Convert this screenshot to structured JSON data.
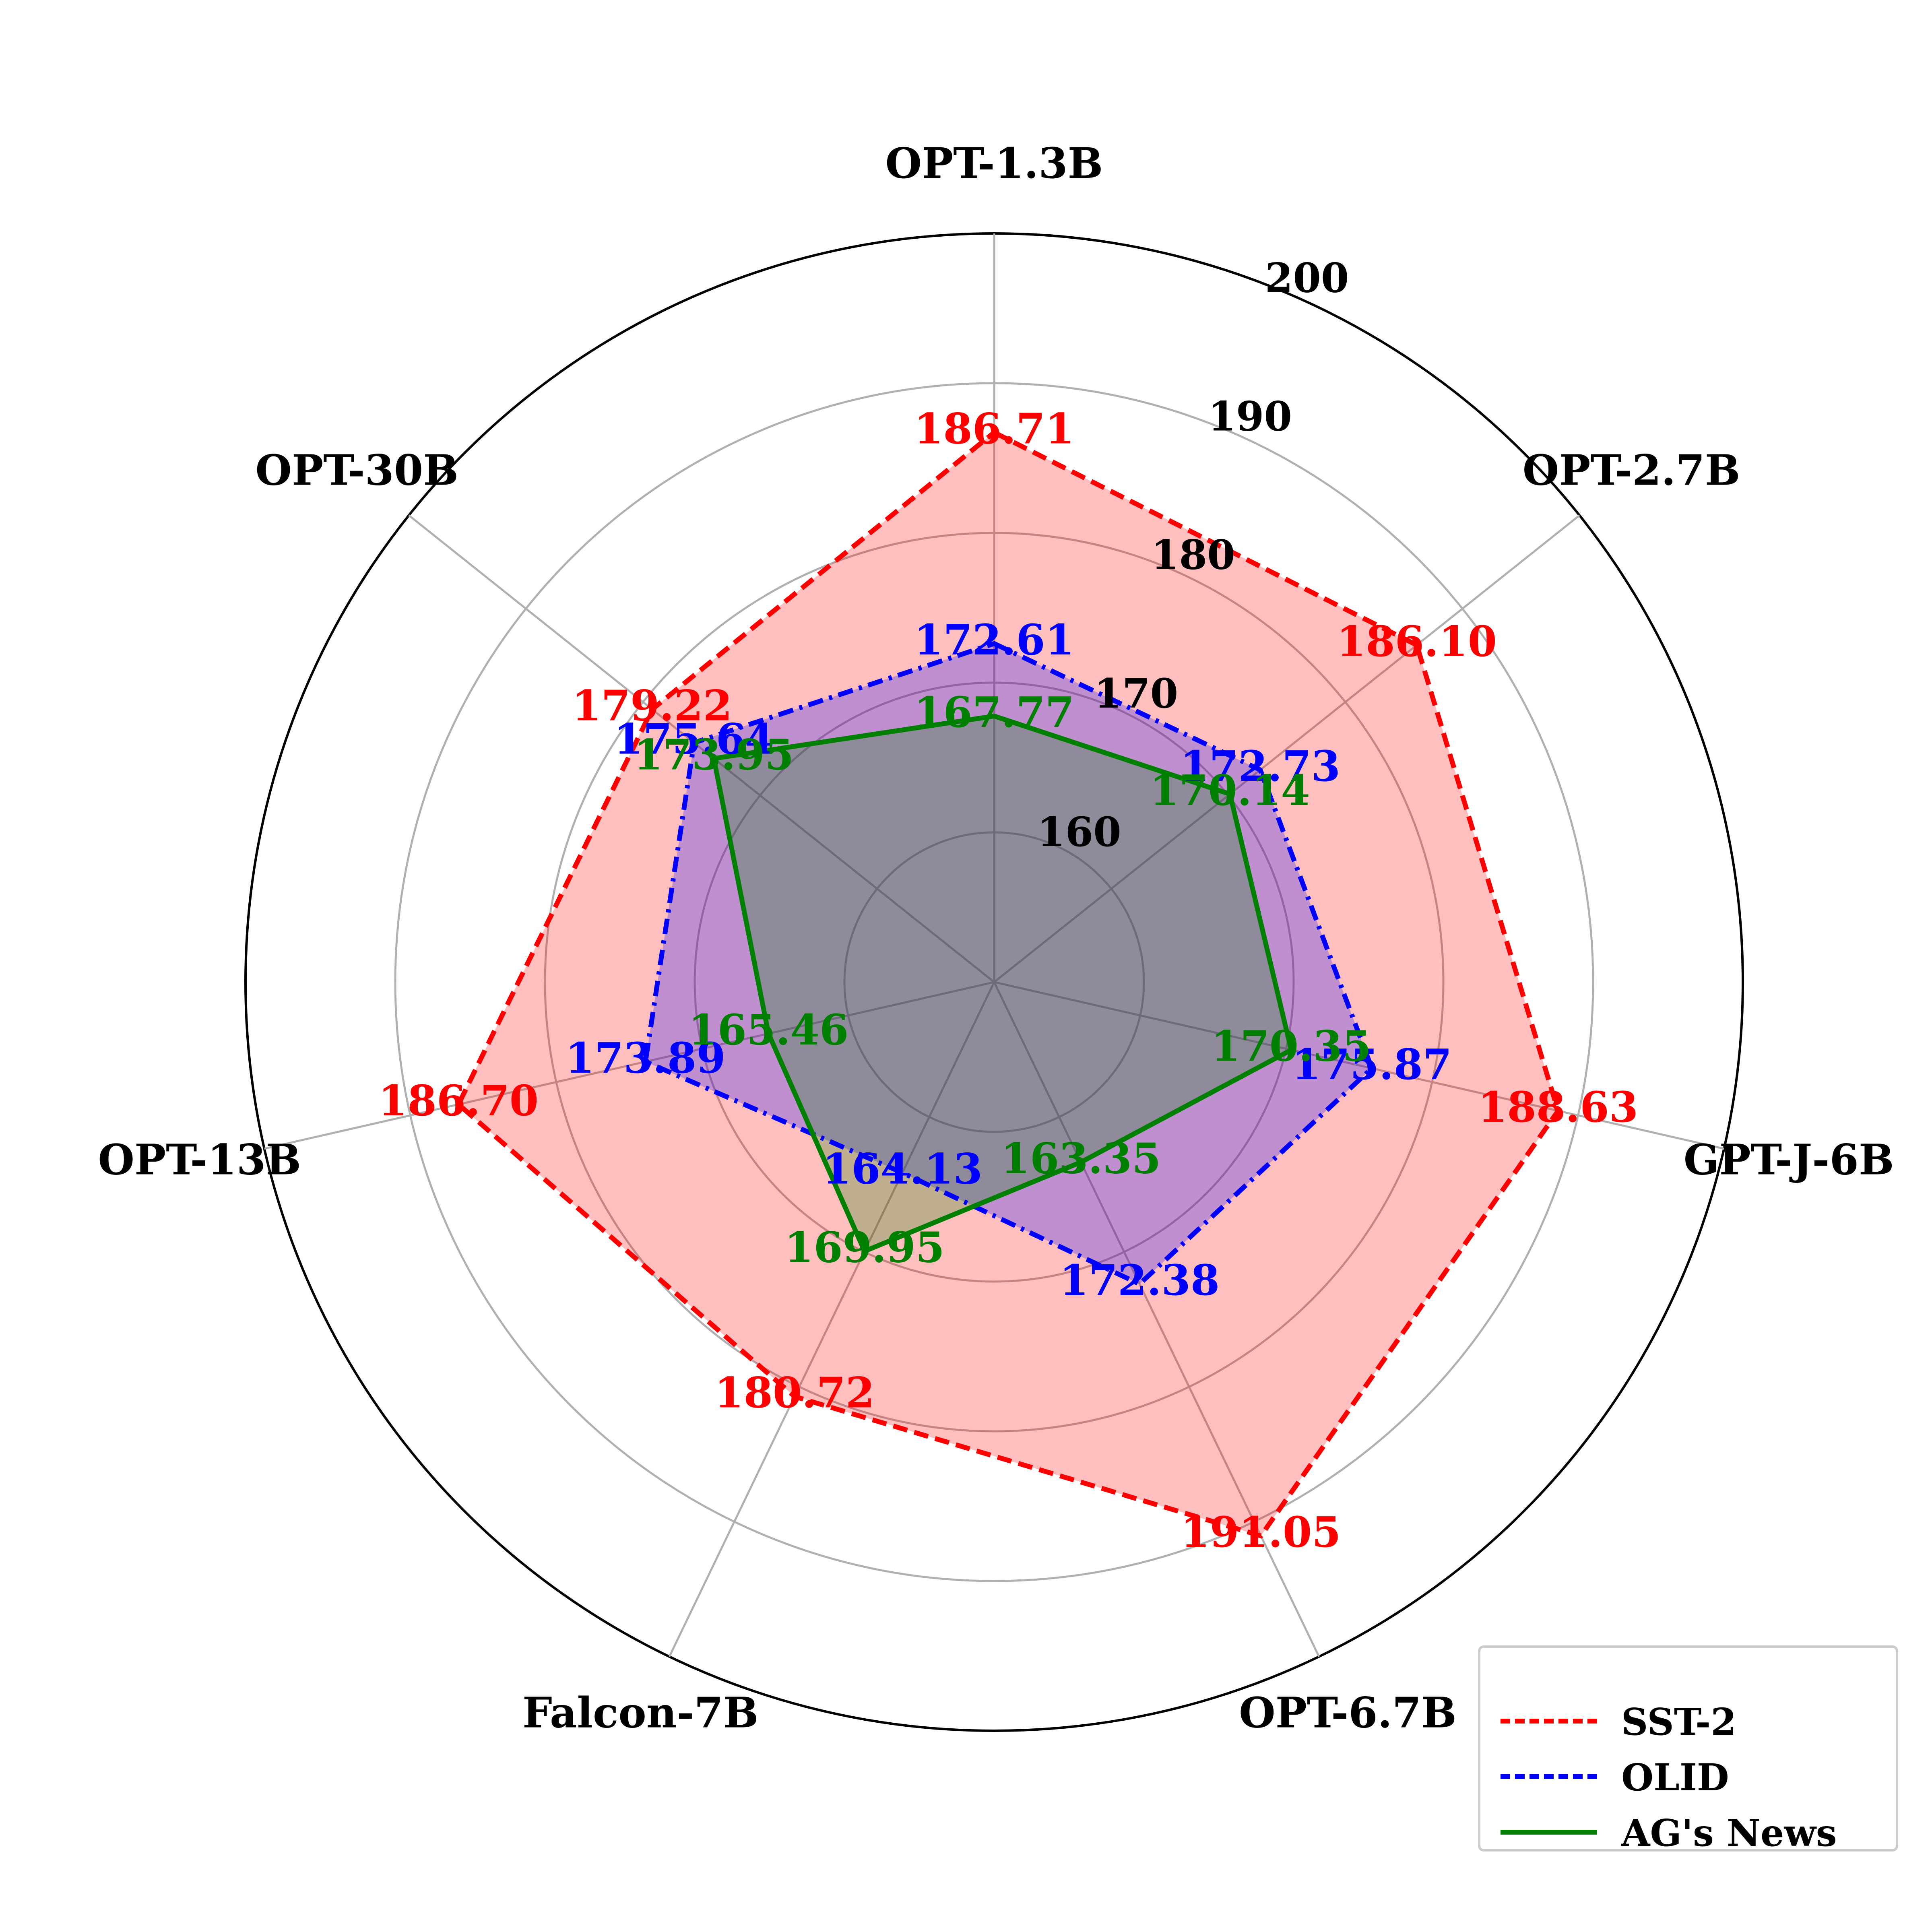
{
  "chart_data": {
    "type": "radar",
    "title": "",
    "categories": [
      "OPT-1.3B",
      "OPT-2.7B",
      "GPT-J-6B",
      "OPT-6.7B",
      "Falcon-7B",
      "OPT-13B",
      "OPT-30B"
    ],
    "radial_range": [
      150,
      200
    ],
    "radial_ticks": [
      "160",
      "170",
      "180",
      "190",
      "200"
    ],
    "grid": true,
    "legend_position": "bottom-right",
    "series": [
      {
        "name": "SST-2",
        "color": "#ff0000",
        "line_style": "dashed",
        "values": [
          186.71,
          186.1,
          188.63,
          191.05,
          180.72,
          186.7,
          179.22
        ],
        "labels": [
          "186.71",
          "186.10",
          "188.63",
          "191.05",
          "180.72",
          "186.70",
          "179.22"
        ]
      },
      {
        "name": "OLID",
        "color": "#0000ff",
        "line_style": "dash-dot",
        "values": [
          172.61,
          172.73,
          175.87,
          172.38,
          164.13,
          173.89,
          175.64
        ],
        "labels": [
          "172.61",
          "172.73",
          "175.87",
          "172.38",
          "164.13",
          "173.89",
          "175.64"
        ]
      },
      {
        "name": "AG's News",
        "color": "#008000",
        "line_style": "solid",
        "values": [
          167.77,
          170.14,
          170.35,
          163.35,
          169.95,
          165.46,
          173.95
        ],
        "labels": [
          "167.77",
          "170.14",
          "170.35",
          "163.35",
          "169.95",
          "165.46",
          "173.95"
        ]
      }
    ]
  }
}
